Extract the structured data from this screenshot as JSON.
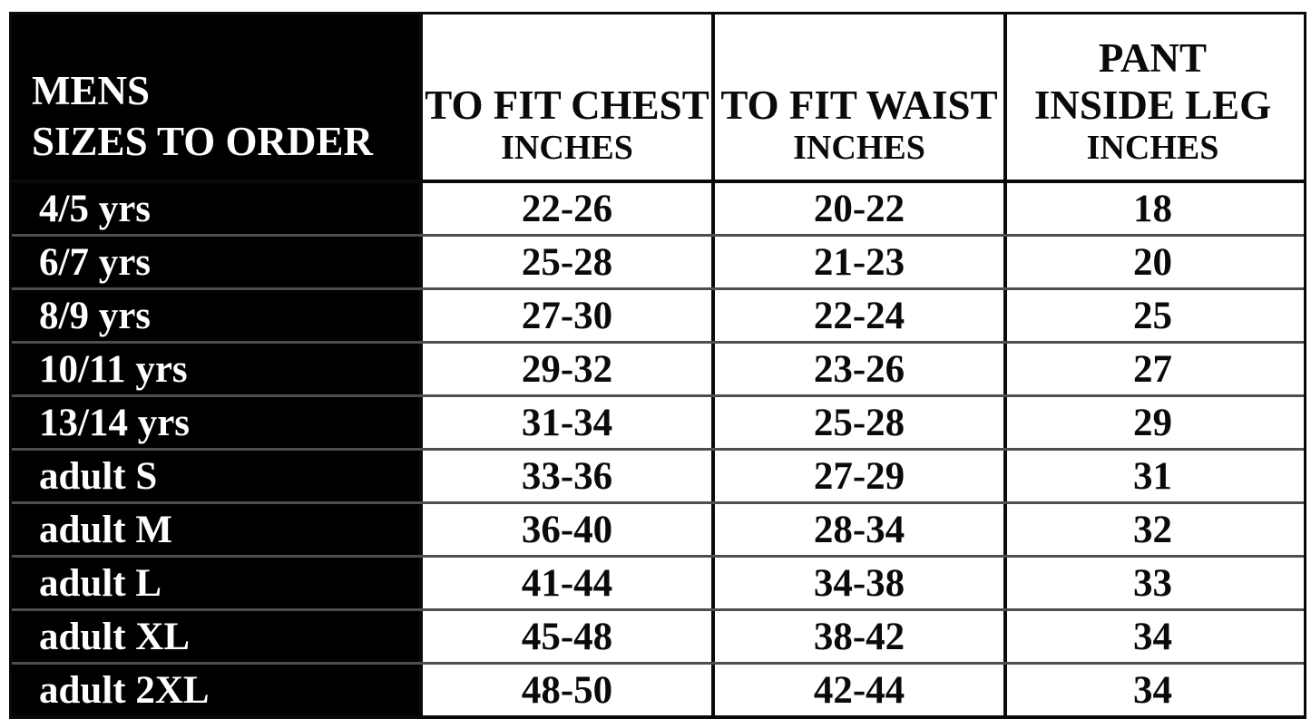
{
  "chart_data": {
    "type": "table",
    "title": "MENS SIZES TO ORDER",
    "columns": [
      "MENS SIZES TO ORDER",
      "TO FIT CHEST INCHES",
      "TO FIT WAIST INCHES",
      "PANT INSIDE LEG INCHES"
    ],
    "rows": [
      [
        "4/5 yrs",
        "22-26",
        "20-22",
        "18"
      ],
      [
        "6/7 yrs",
        "25-28",
        "21-23",
        "20"
      ],
      [
        "8/9 yrs",
        "27-30",
        "22-24",
        "25"
      ],
      [
        "10/11 yrs",
        "29-32",
        "23-26",
        "27"
      ],
      [
        "13/14 yrs",
        "31-34",
        "25-28",
        "29"
      ],
      [
        "adult S",
        "33-36",
        "27-29",
        "31"
      ],
      [
        "adult M",
        "36-40",
        "28-34",
        "32"
      ],
      [
        "adult L",
        "41-44",
        "34-38",
        "33"
      ],
      [
        "adult XL",
        "45-48",
        "38-42",
        "34"
      ],
      [
        "adult 2XL",
        "48-50",
        "42-44",
        "34"
      ]
    ]
  },
  "table": {
    "header": {
      "mens_line1": "MENS",
      "mens_line2": "SIZES TO ORDER",
      "chest_title": "TO FIT CHEST",
      "chest_unit": "INCHES",
      "waist_title": "TO FIT WAIST",
      "waist_unit": "INCHES",
      "pant_line1": "PANT",
      "pant_line2": "INSIDE LEG",
      "pant_unit": "INCHES"
    },
    "rows": [
      {
        "size": "4/5 yrs",
        "chest": "22-26",
        "waist": "20-22",
        "leg": "18"
      },
      {
        "size": "6/7 yrs",
        "chest": "25-28",
        "waist": "21-23",
        "leg": "20"
      },
      {
        "size": "8/9 yrs",
        "chest": "27-30",
        "waist": "22-24",
        "leg": "25"
      },
      {
        "size": "10/11 yrs",
        "chest": "29-32",
        "waist": "23-26",
        "leg": "27"
      },
      {
        "size": "13/14 yrs",
        "chest": "31-34",
        "waist": "25-28",
        "leg": "29"
      },
      {
        "size": "adult S",
        "chest": "33-36",
        "waist": "27-29",
        "leg": "31"
      },
      {
        "size": "adult M",
        "chest": "36-40",
        "waist": "28-34",
        "leg": "32"
      },
      {
        "size": "adult L",
        "chest": "41-44",
        "waist": "34-38",
        "leg": "33"
      },
      {
        "size": "adult XL",
        "chest": "45-48",
        "waist": "38-42",
        "leg": "34"
      },
      {
        "size": "adult 2XL",
        "chest": "48-50",
        "waist": "42-44",
        "leg": "34"
      }
    ]
  },
  "colors": {
    "label_column_bg": "#000000",
    "label_text": "#ffffff",
    "value_text": "#0a0a0a",
    "border": "#0a0a0a",
    "row_separator": "#4e4e4e",
    "background": "#ffffff"
  }
}
